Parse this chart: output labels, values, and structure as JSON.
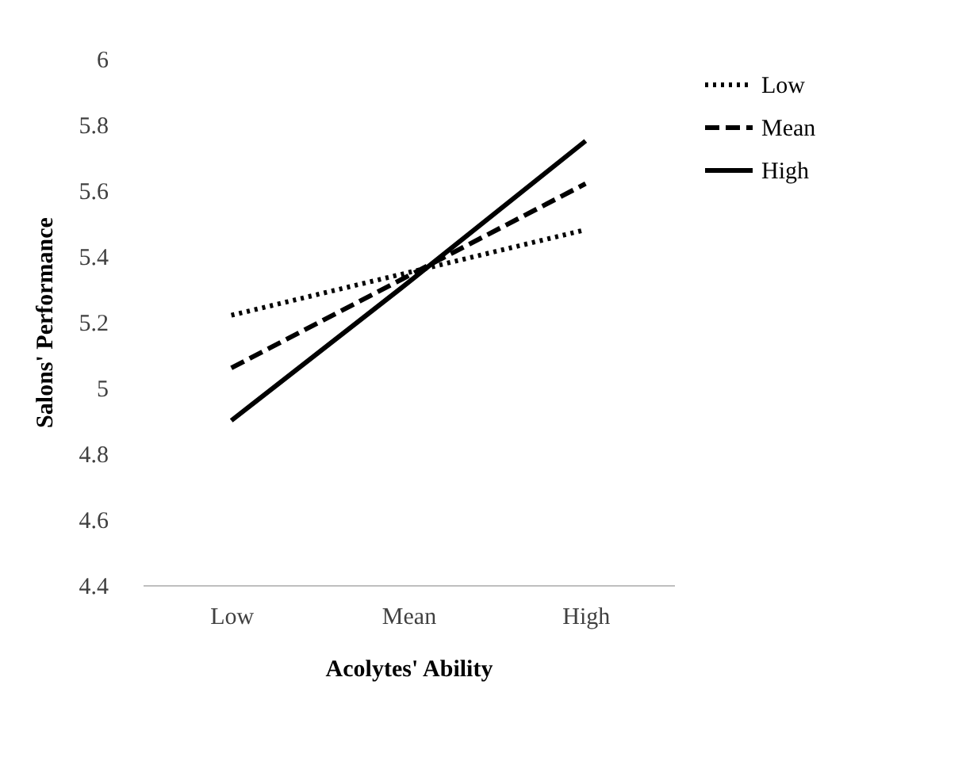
{
  "chart_data": {
    "type": "line",
    "xlabel": "Acolytes' Ability",
    "ylabel": "Salons' Performance",
    "categories": [
      "Low",
      "Mean",
      "High"
    ],
    "series": [
      {
        "name": "Low",
        "color": "#000000",
        "line_style": "dotted",
        "values": [
          5.22,
          5.35,
          5.48
        ]
      },
      {
        "name": "Mean",
        "color": "#000000",
        "line_style": "dashed",
        "values": [
          5.06,
          5.34,
          5.62
        ]
      },
      {
        "name": "High",
        "color": "#000000",
        "line_style": "solid",
        "values": [
          4.9,
          5.32,
          5.75
        ]
      }
    ],
    "ylim": [
      4.4,
      6
    ],
    "yticks": [
      4.4,
      4.6,
      4.8,
      5,
      5.2,
      5.4,
      5.6,
      5.8,
      6
    ],
    "grid": false,
    "legend": "right",
    "marker": "none"
  }
}
